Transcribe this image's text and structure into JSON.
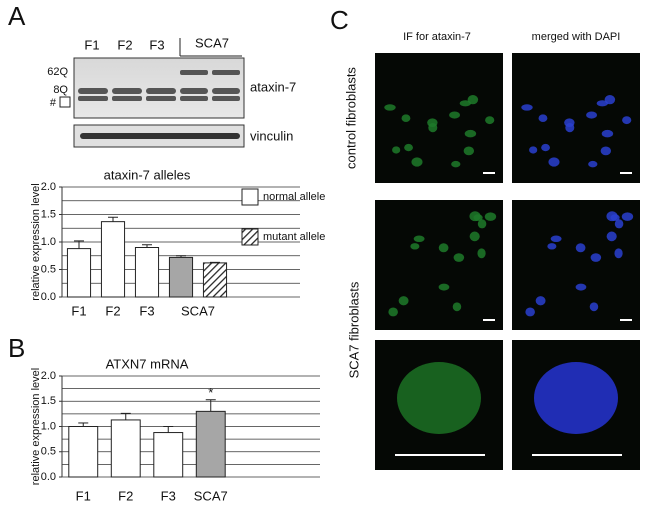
{
  "panel_labels": [
    "A",
    "B",
    "C"
  ],
  "blot": {
    "lanes": [
      "F1",
      "F2",
      "F3"
    ],
    "group_label": "SCA7",
    "markers": [
      "62Q",
      "8Q",
      "#"
    ],
    "bands": [
      "ataxin-7",
      "vinculin"
    ]
  },
  "images": {
    "columns": [
      "IF for ataxin-7",
      "merged  with DAPI"
    ],
    "rows": [
      "control fibroblasts",
      "SCA7 fibroblasts"
    ]
  },
  "chart_data": [
    {
      "type": "bar",
      "title": "ataxin-7 alleles",
      "y_label": "relative expression level",
      "categories": [
        "F1",
        "F2",
        "F3",
        "SCA7",
        null
      ],
      "values": [
        0.88,
        1.37,
        0.9,
        0.72,
        0.62
      ],
      "errors": [
        0.14,
        0.08,
        0.05,
        0.03,
        0.01
      ],
      "colors": [
        "#ffffff",
        "#ffffff",
        "#ffffff",
        "#a6a6a6",
        "hatch"
      ],
      "legend": [
        {
          "name": "normal allele",
          "color": "#ffffff"
        },
        {
          "name": "mutant allele",
          "color": "hatch"
        }
      ],
      "ylim": [
        0,
        2
      ],
      "yticks": [
        {
          "value": 0,
          "label": "0.0"
        },
        {
          "value": 0.5,
          "label": "0.5"
        },
        {
          "value": 1,
          "label": "1.0"
        },
        {
          "value": 1.5,
          "label": "1.5"
        },
        {
          "value": 2,
          "label": "2.0"
        }
      ],
      "minor_yticks": [
        0.25,
        0.75,
        1.25,
        1.75
      ],
      "grid": true
    },
    {
      "type": "bar",
      "title": "ATXN7 mRNA",
      "y_label": "relative expression level",
      "categories": [
        "F1",
        "F2",
        "F3",
        "SCA7"
      ],
      "values": [
        1.0,
        1.13,
        0.88,
        1.3
      ],
      "errors": [
        0.07,
        0.13,
        0.12,
        0.23
      ],
      "colors": [
        "#ffffff",
        "#ffffff",
        "#ffffff",
        "#a6a6a6"
      ],
      "annotation": "*",
      "ylim": [
        0,
        2
      ],
      "yticks": [
        {
          "value": 0,
          "label": "0.0"
        },
        {
          "value": 0.5,
          "label": "0.5"
        },
        {
          "value": 1,
          "label": "1.0"
        },
        {
          "value": 1.5,
          "label": "1.5"
        },
        {
          "value": 2,
          "label": "2.0"
        }
      ],
      "minor_yticks": [
        0.25,
        0.75,
        1.25,
        1.75
      ],
      "grid": true
    }
  ]
}
